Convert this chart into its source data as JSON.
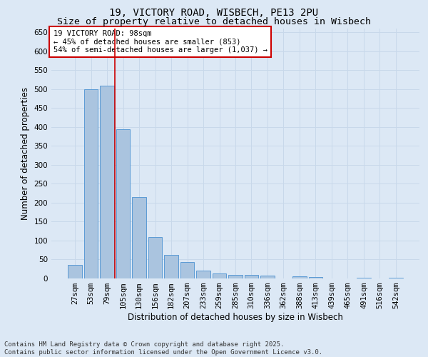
{
  "title_line1": "19, VICTORY ROAD, WISBECH, PE13 2PU",
  "title_line2": "Size of property relative to detached houses in Wisbech",
  "xlabel": "Distribution of detached houses by size in Wisbech",
  "ylabel": "Number of detached properties",
  "categories": [
    "27sqm",
    "53sqm",
    "79sqm",
    "105sqm",
    "130sqm",
    "156sqm",
    "182sqm",
    "207sqm",
    "233sqm",
    "259sqm",
    "285sqm",
    "310sqm",
    "336sqm",
    "362sqm",
    "388sqm",
    "413sqm",
    "439sqm",
    "465sqm",
    "491sqm",
    "516sqm",
    "542sqm"
  ],
  "values": [
    35,
    500,
    510,
    395,
    215,
    110,
    62,
    43,
    20,
    14,
    9,
    9,
    7,
    0,
    5,
    3,
    0,
    0,
    2,
    0,
    2
  ],
  "bar_color": "#aac4df",
  "bar_edge_color": "#5b9bd5",
  "grid_color": "#c8d8ea",
  "background_color": "#dce8f5",
  "annotation_box_text": "19 VICTORY ROAD: 98sqm\n← 45% of detached houses are smaller (853)\n54% of semi-detached houses are larger (1,037) →",
  "annotation_box_color": "#ffffff",
  "annotation_box_edge_color": "#cc0000",
  "property_line_x": 2.5,
  "property_line_color": "#cc0000",
  "ylim": [
    0,
    660
  ],
  "yticks": [
    0,
    50,
    100,
    150,
    200,
    250,
    300,
    350,
    400,
    450,
    500,
    550,
    600,
    650
  ],
  "footer": "Contains HM Land Registry data © Crown copyright and database right 2025.\nContains public sector information licensed under the Open Government Licence v3.0.",
  "title_fontsize": 10,
  "subtitle_fontsize": 9.5,
  "axis_label_fontsize": 8.5,
  "tick_fontsize": 7.5,
  "annotation_fontsize": 7.5,
  "footer_fontsize": 6.5
}
